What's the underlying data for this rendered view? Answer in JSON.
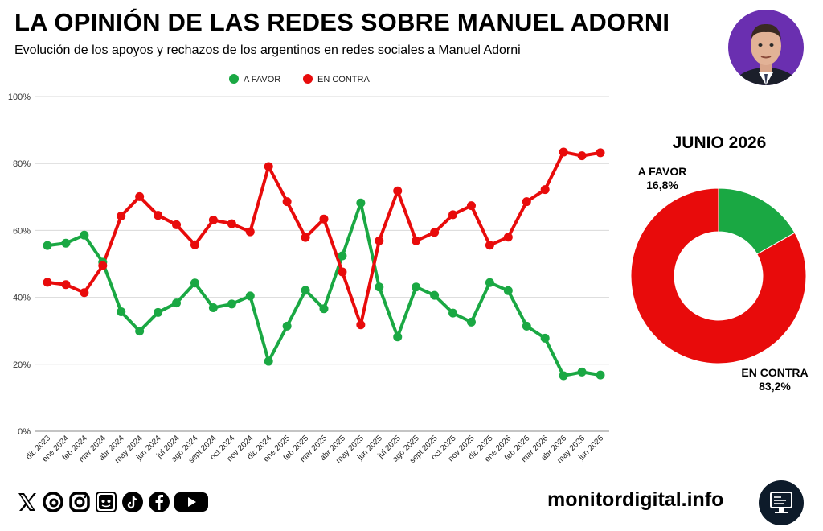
{
  "header": {
    "title": "LA OPINIÓN DE LAS REDES SOBRE MANUEL ADORNI",
    "subtitle": "Evolución de los apoyos y rechazos de los argentinos en redes sociales a Manuel Adorni"
  },
  "chart_data": [
    {
      "type": "line",
      "title": "",
      "xlabel": "",
      "ylabel": "",
      "ylim": [
        0,
        100
      ],
      "yticks": [
        "0%",
        "20%",
        "40%",
        "60%",
        "80%",
        "100%"
      ],
      "grid": true,
      "legend_position": "top-center",
      "categories": [
        "dic 2023",
        "ene 2024",
        "feb 2024",
        "mar 2024",
        "abr 2024",
        "may 2024",
        "jun 2024",
        "jul 2024",
        "ago 2024",
        "sept 2024",
        "oct 2024",
        "nov 2024",
        "dic 2024",
        "ene 2025",
        "feb 2025",
        "mar 2025",
        "abr 2025",
        "may 2025",
        "jun 2025",
        "jul 2025",
        "ago 2025",
        "sept 2025",
        "oct 2025",
        "nov 2025",
        "dic 2025",
        "ene 2026",
        "feb 2026",
        "mar 2026",
        "abr 2026",
        "may 2026",
        "jun 2026"
      ],
      "series": [
        {
          "name": "A FAVOR",
          "color": "#1aa843",
          "values": [
            55.5,
            56.2,
            58.6,
            50.5,
            35.7,
            29.9,
            35.5,
            38.3,
            44.3,
            36.9,
            38.0,
            40.4,
            20.9,
            31.4,
            42.1,
            36.6,
            52.4,
            68.2,
            43.1,
            28.2,
            43.1,
            40.6,
            35.3,
            32.6,
            44.4,
            42.0,
            31.4,
            27.8,
            16.6,
            17.7,
            16.8
          ]
        },
        {
          "name": "EN CONTRA",
          "color": "#e80b0b",
          "values": [
            44.5,
            43.8,
            41.4,
            49.5,
            64.3,
            70.1,
            64.5,
            61.7,
            55.7,
            63.1,
            62.0,
            59.6,
            79.1,
            68.6,
            57.9,
            63.4,
            47.6,
            31.8,
            56.9,
            71.8,
            56.9,
            59.4,
            64.7,
            67.4,
            55.6,
            58.0,
            68.6,
            72.2,
            83.4,
            82.3,
            83.2
          ]
        }
      ]
    },
    {
      "type": "pie",
      "title": "JUNIO 2026",
      "slices": [
        {
          "name": "A FAVOR",
          "value": 16.8,
          "label": "16,8%",
          "color": "#1aa843"
        },
        {
          "name": "EN CONTRA",
          "value": 83.2,
          "label": "83,2%",
          "color": "#e80b0b"
        }
      ]
    }
  ],
  "footer": {
    "social_icons": [
      "x-icon",
      "threads-icon",
      "instagram-icon",
      "bluesky-icon",
      "tiktok-icon",
      "facebook-icon",
      "youtube-icon"
    ],
    "site": "monitordigital.info"
  }
}
